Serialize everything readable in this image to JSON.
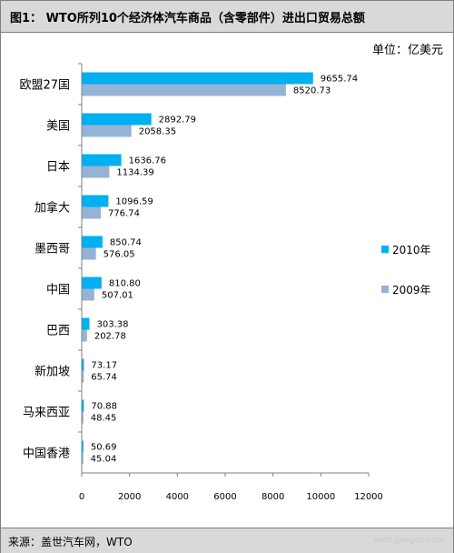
{
  "title": "图1： WTO所列10个经济体汽车商品（含零部件）进出口贸易总额",
  "unit": "单位：亿美元",
  "source": "来源：盖世汽车网，WTO",
  "watermark": "auto.gasgoo.com",
  "colors": {
    "series_2010": "#00b0f0",
    "series_2009": "#95b3d7",
    "axis": "#808080",
    "header_bg": "#d9d9d9"
  },
  "chart_data": {
    "type": "bar",
    "orientation": "horizontal",
    "categories": [
      "欧盟27国",
      "美国",
      "日本",
      "加拿大",
      "墨西哥",
      "中国",
      "巴西",
      "新加坡",
      "马来西亚",
      "中国香港"
    ],
    "series": [
      {
        "name": "2010年",
        "values": [
          9655.74,
          2892.79,
          1636.76,
          1096.59,
          850.74,
          810.8,
          303.38,
          73.17,
          70.88,
          50.69
        ],
        "labels": [
          "9655.74",
          "2892.79",
          "1636.76",
          "1096.59",
          "850.74",
          "810.80",
          "303.38",
          "73.17",
          "70.88",
          "50.69"
        ]
      },
      {
        "name": "2009年",
        "values": [
          8520.73,
          2058.35,
          1134.39,
          776.74,
          576.05,
          507.01,
          202.78,
          65.74,
          48.45,
          45.04
        ],
        "labels": [
          "8520.73",
          "2058.35",
          "1134.39",
          "776.74",
          "576.05",
          "507.01",
          "202.78",
          "65.74",
          "48.45",
          "45.04"
        ]
      }
    ],
    "xlim": [
      0,
      12000
    ],
    "xticks": [
      0,
      2000,
      4000,
      6000,
      8000,
      10000,
      12000
    ],
    "xtick_labels": [
      "0",
      "2000",
      "4000",
      "6000",
      "8000",
      "10000",
      "12000"
    ],
    "grid": false,
    "legend": "right"
  }
}
